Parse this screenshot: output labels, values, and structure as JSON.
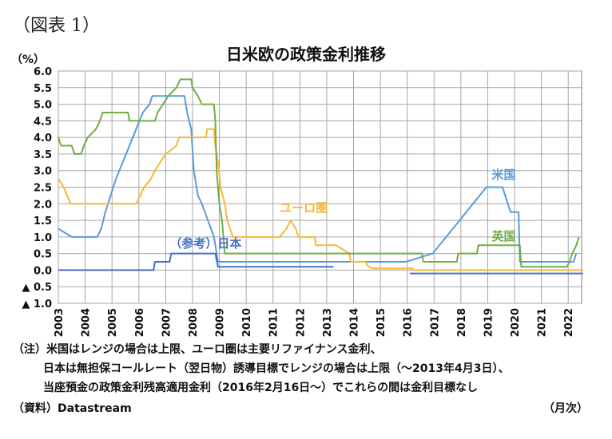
{
  "figure_label": "（図表 1）",
  "unit_label": "（%）",
  "notes": [
    "（注）米国はレンジの場合は上限、ユーロ圏は主要リファイナンス金利、",
    "日本は無担保コールレート（翌日物）誘導目標でレンジの場合は上限（～2013年4月3日）、",
    "当座預金の政策金利残高適用金利（2016年2月16日～）でこれらの間は金利目標なし"
  ],
  "source": "（資料）Datastream",
  "frequency": "（月次）",
  "chart_data": {
    "type": "line",
    "title": "日米欧の政策金利推移",
    "ylim": [
      -1.0,
      6.0
    ],
    "y_ticks": [
      {
        "value": 6.0,
        "label": "6.0"
      },
      {
        "value": 5.5,
        "label": "5.5"
      },
      {
        "value": 5.0,
        "label": "5.0"
      },
      {
        "value": 4.5,
        "label": "4.5"
      },
      {
        "value": 4.0,
        "label": "4.0"
      },
      {
        "value": 3.5,
        "label": "3.5"
      },
      {
        "value": 3.0,
        "label": "3.0"
      },
      {
        "value": 2.5,
        "label": "2.5"
      },
      {
        "value": 2.0,
        "label": "2.0"
      },
      {
        "value": 1.5,
        "label": "1.5"
      },
      {
        "value": 1.0,
        "label": "1.0"
      },
      {
        "value": 0.5,
        "label": "0.5"
      },
      {
        "value": 0.0,
        "label": "0.0"
      },
      {
        "value": -0.5,
        "label": "▲ 0.5"
      },
      {
        "value": -1.0,
        "label": "▲ 1.0"
      }
    ],
    "xlim": [
      2003.0,
      2022.5
    ],
    "x_ticks": [
      "2003",
      "2004",
      "2005",
      "2006",
      "2007",
      "2008",
      "2009",
      "2010",
      "2011",
      "2012",
      "2013",
      "2014",
      "2015",
      "2016",
      "2017",
      "2018",
      "2019",
      "2020",
      "2021",
      "2022"
    ],
    "grid": true,
    "series": [
      {
        "name": "米国",
        "color": "#5b9bd5",
        "points": [
          [
            2003.0,
            1.25
          ],
          [
            2003.5,
            1.0
          ],
          [
            2004.45,
            1.0
          ],
          [
            2004.6,
            1.25
          ],
          [
            2004.75,
            1.75
          ],
          [
            2004.95,
            2.25
          ],
          [
            2005.15,
            2.75
          ],
          [
            2005.4,
            3.25
          ],
          [
            2005.65,
            3.75
          ],
          [
            2005.9,
            4.25
          ],
          [
            2006.15,
            4.75
          ],
          [
            2006.4,
            5.0
          ],
          [
            2006.5,
            5.25
          ],
          [
            2007.7,
            5.25
          ],
          [
            2007.8,
            4.75
          ],
          [
            2007.95,
            4.25
          ],
          [
            2008.05,
            3.0
          ],
          [
            2008.2,
            2.25
          ],
          [
            2008.35,
            2.0
          ],
          [
            2008.8,
            1.0
          ],
          [
            2008.95,
            0.25
          ],
          [
            2015.95,
            0.25
          ],
          [
            2016.95,
            0.5
          ],
          [
            2017.2,
            0.75
          ],
          [
            2017.45,
            1.0
          ],
          [
            2017.95,
            1.5
          ],
          [
            2018.2,
            1.75
          ],
          [
            2018.45,
            2.0
          ],
          [
            2018.7,
            2.25
          ],
          [
            2018.95,
            2.5
          ],
          [
            2019.55,
            2.5
          ],
          [
            2019.65,
            2.25
          ],
          [
            2019.75,
            2.0
          ],
          [
            2019.85,
            1.75
          ],
          [
            2020.15,
            1.75
          ],
          [
            2020.2,
            0.25
          ],
          [
            2022.2,
            0.25
          ],
          [
            2022.3,
            0.5
          ]
        ]
      },
      {
        "name": "ユーロ圏",
        "color": "#f5b935",
        "points": [
          [
            2003.0,
            2.75
          ],
          [
            2003.2,
            2.5
          ],
          [
            2003.45,
            2.0
          ],
          [
            2005.9,
            2.0
          ],
          [
            2006.05,
            2.25
          ],
          [
            2006.2,
            2.5
          ],
          [
            2006.45,
            2.75
          ],
          [
            2006.6,
            3.0
          ],
          [
            2006.8,
            3.25
          ],
          [
            2007.0,
            3.5
          ],
          [
            2007.4,
            3.75
          ],
          [
            2007.5,
            4.0
          ],
          [
            2008.5,
            4.0
          ],
          [
            2008.55,
            4.25
          ],
          [
            2008.8,
            4.25
          ],
          [
            2008.85,
            3.75
          ],
          [
            2008.95,
            3.25
          ],
          [
            2009.05,
            2.5
          ],
          [
            2009.2,
            2.0
          ],
          [
            2009.3,
            1.5
          ],
          [
            2009.4,
            1.25
          ],
          [
            2009.5,
            1.0
          ],
          [
            2011.25,
            1.0
          ],
          [
            2011.5,
            1.25
          ],
          [
            2011.65,
            1.5
          ],
          [
            2011.85,
            1.25
          ],
          [
            2011.95,
            1.0
          ],
          [
            2012.55,
            1.0
          ],
          [
            2012.6,
            0.75
          ],
          [
            2013.35,
            0.75
          ],
          [
            2013.85,
            0.5
          ],
          [
            2013.9,
            0.25
          ],
          [
            2014.45,
            0.25
          ],
          [
            2014.5,
            0.15
          ],
          [
            2014.7,
            0.05
          ],
          [
            2016.2,
            0.05
          ],
          [
            2016.25,
            0.0
          ],
          [
            2022.55,
            0.0
          ]
        ]
      },
      {
        "name": "英国",
        "color": "#70ad47",
        "points": [
          [
            2003.0,
            4.0
          ],
          [
            2003.1,
            3.75
          ],
          [
            2003.5,
            3.75
          ],
          [
            2003.6,
            3.5
          ],
          [
            2003.85,
            3.5
          ],
          [
            2003.95,
            3.75
          ],
          [
            2004.1,
            4.0
          ],
          [
            2004.4,
            4.25
          ],
          [
            2004.55,
            4.5
          ],
          [
            2004.65,
            4.75
          ],
          [
            2005.6,
            4.75
          ],
          [
            2005.65,
            4.5
          ],
          [
            2006.6,
            4.5
          ],
          [
            2006.7,
            4.75
          ],
          [
            2006.9,
            5.0
          ],
          [
            2007.1,
            5.25
          ],
          [
            2007.4,
            5.5
          ],
          [
            2007.55,
            5.75
          ],
          [
            2007.95,
            5.75
          ],
          [
            2008.0,
            5.5
          ],
          [
            2008.2,
            5.25
          ],
          [
            2008.35,
            5.0
          ],
          [
            2008.8,
            5.0
          ],
          [
            2008.85,
            4.5
          ],
          [
            2008.9,
            3.0
          ],
          [
            2009.0,
            2.0
          ],
          [
            2009.1,
            1.5
          ],
          [
            2009.15,
            1.0
          ],
          [
            2009.2,
            0.5
          ],
          [
            2016.55,
            0.5
          ],
          [
            2016.6,
            0.25
          ],
          [
            2017.85,
            0.25
          ],
          [
            2017.9,
            0.5
          ],
          [
            2018.6,
            0.5
          ],
          [
            2018.65,
            0.75
          ],
          [
            2020.2,
            0.75
          ],
          [
            2020.25,
            0.1
          ],
          [
            2021.95,
            0.1
          ],
          [
            2022.05,
            0.25
          ],
          [
            2022.15,
            0.5
          ],
          [
            2022.3,
            0.75
          ],
          [
            2022.4,
            1.0
          ]
        ]
      },
      {
        "name": "日本",
        "color": "#4472c4",
        "points": [
          [
            2003.0,
            0.0
          ],
          [
            2006.55,
            0.0
          ],
          [
            2006.6,
            0.25
          ],
          [
            2007.15,
            0.25
          ],
          [
            2007.2,
            0.5
          ],
          [
            2008.85,
            0.5
          ],
          [
            2008.9,
            0.3
          ],
          [
            2008.95,
            0.1
          ],
          [
            2013.25,
            0.1
          ],
          [
            2016.1,
            -0.1
          ],
          [
            2022.55,
            -0.1
          ]
        ],
        "segments": [
          [
            0,
            8
          ],
          [
            9,
            10
          ]
        ]
      }
    ],
    "annotations": [
      {
        "text": "米国",
        "series": "米国",
        "x": 2019.15,
        "y": 2.75
      },
      {
        "text": "ユーロ圏",
        "series": "ユーロ圏",
        "x": 2011.25,
        "y": 1.75
      },
      {
        "text": "英国",
        "series": "英国",
        "x": 2019.15,
        "y": 0.9
      },
      {
        "text": "（参考）日本",
        "series": "日本",
        "x": 2007.15,
        "y": 0.68
      }
    ]
  }
}
